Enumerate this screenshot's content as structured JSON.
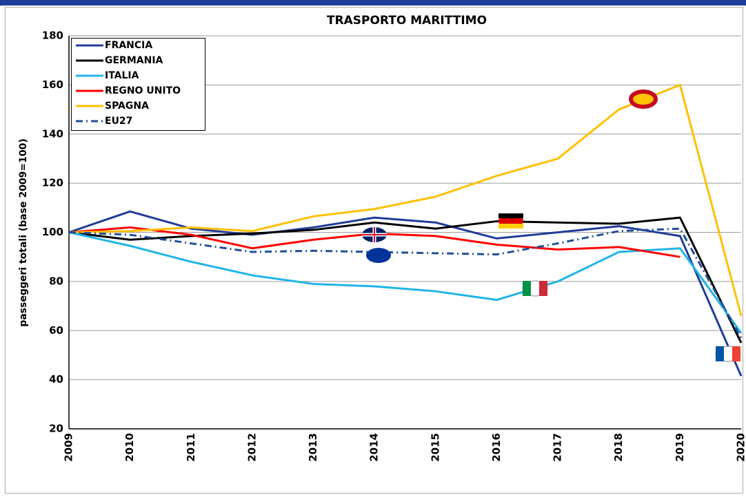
{
  "chart_data": {
    "type": "line",
    "title": "TRASPORTO MARITTIMO",
    "y_label": "passeggeri totali (base 2009=100)",
    "categories": [
      "2009",
      "2010",
      "2011",
      "2012",
      "2013",
      "2014",
      "2015",
      "2016",
      "2017",
      "2018",
      "2019",
      "2020"
    ],
    "ylim": [
      20,
      180
    ],
    "yticks": [
      20,
      40,
      60,
      80,
      100,
      120,
      140,
      160,
      180
    ],
    "grid": true,
    "series": [
      {
        "name": "FRANCIA",
        "color": "#1f3c99",
        "dash": "solid",
        "values": [
          100,
          108.5,
          101.5,
          99,
          102,
          106,
          104,
          97.5,
          100,
          102.5,
          98.5,
          41.5
        ]
      },
      {
        "name": "GERMANIA",
        "color": "#000000",
        "dash": "solid",
        "values": [
          100,
          97,
          98.5,
          99.5,
          101,
          104,
          101.5,
          104.5,
          104,
          103.5,
          106,
          55
        ]
      },
      {
        "name": "ITALIA",
        "color": "#1fb4e8",
        "dash": "solid",
        "values": [
          100,
          94.5,
          88,
          82.5,
          79,
          78,
          76,
          72.5,
          80,
          92,
          93.5,
          59
        ]
      },
      {
        "name": "REGNO UNITO",
        "color": "#ff0000",
        "dash": "solid",
        "values": [
          100,
          102,
          99,
          93.5,
          97,
          99.5,
          98.5,
          95,
          93,
          94,
          90,
          null
        ]
      },
      {
        "name": "SPAGNA",
        "color": "#ffc000",
        "dash": "solid",
        "values": [
          100,
          100.5,
          102,
          100.5,
          106.5,
          109.5,
          114.5,
          123,
          130,
          150,
          160,
          66
        ]
      },
      {
        "name": "EU27",
        "color": "#1f4e99",
        "dash": "dashdot",
        "values": [
          100,
          99,
          95.5,
          92,
          92.5,
          92,
          91.5,
          91,
          95.5,
          100.5,
          101.5,
          57
        ]
      }
    ]
  }
}
